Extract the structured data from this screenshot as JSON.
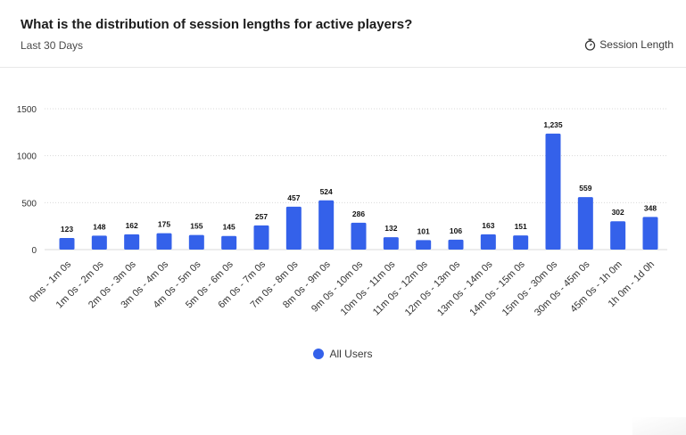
{
  "header": {
    "title": "What is the distribution of session lengths for active players?",
    "subtitle": "Last 30 Days",
    "metric_label": "Session Length",
    "metric_icon": "stopwatch-icon"
  },
  "colors": {
    "bar": "#3461ea",
    "grid": "#d9d9d9",
    "axis_text": "#333333"
  },
  "chart_data": {
    "type": "bar",
    "title": "What is the distribution of session lengths for active players?",
    "categories": [
      "0ms - 1m 0s",
      "1m 0s - 2m 0s",
      "2m 0s - 3m 0s",
      "3m 0s - 4m 0s",
      "4m 0s - 5m 0s",
      "5m 0s - 6m 0s",
      "6m 0s - 7m 0s",
      "7m 0s - 8m 0s",
      "8m 0s - 9m 0s",
      "9m 0s - 10m 0s",
      "10m 0s - 11m 0s",
      "11m 0s - 12m 0s",
      "12m 0s - 13m 0s",
      "13m 0s - 14m 0s",
      "14m 0s - 15m 0s",
      "15m 0s - 30m 0s",
      "30m 0s - 45m 0s",
      "45m 0s - 1h 0m",
      "1h 0m - 1d 0h"
    ],
    "series": [
      {
        "name": "All Users",
        "values": [
          123,
          148,
          162,
          175,
          155,
          145,
          257,
          457,
          524,
          286,
          132,
          101,
          106,
          163,
          151,
          1235,
          559,
          302,
          348
        ],
        "labels": [
          "123",
          "148",
          "162",
          "175",
          "155",
          "145",
          "257",
          "457",
          "524",
          "286",
          "132",
          "101",
          "106",
          "163",
          "151",
          "1,235",
          "559",
          "302",
          "348"
        ]
      }
    ],
    "yticks": [
      0,
      500,
      1000,
      1500
    ],
    "ylim": [
      0,
      1500
    ],
    "xlabel": "",
    "ylabel": "",
    "grid": true,
    "legend": "bottom-center"
  }
}
